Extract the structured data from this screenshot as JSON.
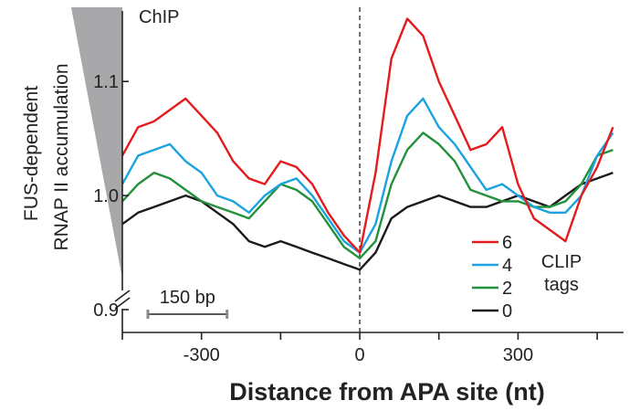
{
  "chart_data": {
    "type": "line",
    "panel_label": "ChIP",
    "ylabel_line1": "FUS-dependent",
    "ylabel_line2": "RNAP II accumulation",
    "xlabel": "Distance from APA site (nt)",
    "xlim": [
      -450,
      500
    ],
    "ylim": [
      0.88,
      1.165
    ],
    "xticks": [
      -300,
      0,
      300
    ],
    "xtick_labels": [
      "-300",
      "0",
      "300"
    ],
    "yticks": [
      0.9,
      1.0,
      1.1
    ],
    "ytick_labels": [
      "0.9",
      "1.0",
      "1.1"
    ],
    "scale_bar": {
      "label": "150 bp",
      "from": -450,
      "to": -300
    },
    "reference_line_x": 0,
    "legend": {
      "title_line1": "CLIP",
      "title_line2": "tags",
      "placement": "bottom-right"
    },
    "x": [
      -450,
      -420,
      -390,
      -360,
      -330,
      -300,
      -270,
      -240,
      -210,
      -180,
      -150,
      -120,
      -90,
      -60,
      -30,
      0,
      30,
      60,
      90,
      120,
      150,
      180,
      210,
      240,
      270,
      300,
      330,
      360,
      390,
      420,
      450,
      480
    ],
    "series": [
      {
        "name": "6",
        "color": "#e41a1c",
        "values": [
          1.035,
          1.06,
          1.065,
          1.075,
          1.085,
          1.07,
          1.055,
          1.03,
          1.015,
          1.01,
          1.03,
          1.025,
          1.01,
          0.985,
          0.965,
          0.95,
          1.02,
          1.12,
          1.155,
          1.14,
          1.1,
          1.07,
          1.04,
          1.045,
          1.06,
          1.01,
          0.98,
          0.97,
          0.96,
          1.0,
          1.025,
          1.06
        ]
      },
      {
        "name": "4",
        "color": "#1aa3e0",
        "values": [
          1.01,
          1.035,
          1.04,
          1.045,
          1.03,
          1.02,
          1.0,
          0.995,
          0.985,
          1.0,
          1.01,
          1.015,
          1.0,
          0.98,
          0.96,
          0.95,
          0.975,
          1.03,
          1.07,
          1.085,
          1.06,
          1.045,
          1.025,
          1.005,
          1.01,
          1.0,
          0.99,
          0.985,
          0.985,
          1.0,
          1.035,
          1.055
        ]
      },
      {
        "name": "2",
        "color": "#23913b",
        "values": [
          0.995,
          1.01,
          1.02,
          1.015,
          1.005,
          0.995,
          0.99,
          0.985,
          0.98,
          0.995,
          1.01,
          1.005,
          0.995,
          0.975,
          0.955,
          0.945,
          0.96,
          1.01,
          1.04,
          1.055,
          1.045,
          1.03,
          1.005,
          1.0,
          0.995,
          0.995,
          0.99,
          0.99,
          0.995,
          1.01,
          1.035,
          1.04
        ]
      },
      {
        "name": "0",
        "color": "#1a1a1a",
        "values": [
          0.975,
          0.985,
          0.99,
          0.995,
          1.0,
          0.995,
          0.985,
          0.975,
          0.96,
          0.955,
          0.96,
          0.955,
          0.95,
          0.945,
          0.94,
          0.935,
          0.95,
          0.98,
          0.99,
          0.995,
          1.0,
          0.995,
          0.99,
          0.99,
          0.995,
          1.0,
          0.995,
          0.99,
          1.0,
          1.01,
          1.015,
          1.02
        ]
      }
    ]
  }
}
